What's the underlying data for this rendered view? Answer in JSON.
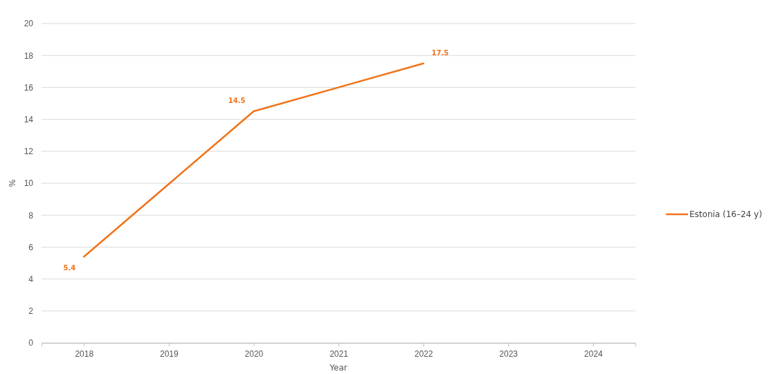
{
  "chart_data": {
    "type": "line",
    "xlabel": "Year",
    "ylabel": "%",
    "x": [
      2018,
      2020,
      2022
    ],
    "series": [
      {
        "name": "Estonia (16–24 y)",
        "color": "#f07318",
        "values": [
          5.4,
          14.5,
          17.5
        ]
      }
    ],
    "xlim": [
      2017.5,
      2024.5
    ],
    "xticks": [
      2018,
      2019,
      2020,
      2021,
      2022,
      2023,
      2024
    ],
    "ylim": [
      0,
      20
    ],
    "yticks": [
      0,
      2,
      4,
      6,
      8,
      10,
      12,
      14,
      16,
      18,
      20
    ],
    "grid": "y",
    "legend": "right",
    "data_labels": true,
    "marker": "none",
    "line_style": "solid"
  }
}
